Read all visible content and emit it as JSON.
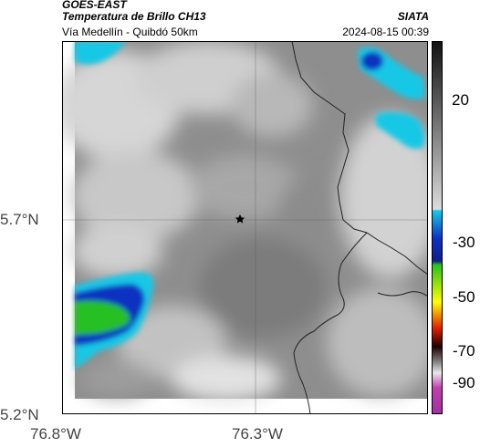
{
  "header": {
    "agency": "GOES-EAST",
    "product": "Temperatura de Brillo CH13",
    "organization": "SIATA",
    "route": "Vía Medellín - Quibdó 50km",
    "datetime": "2024-08-15 00:39"
  },
  "map": {
    "lat_ticks": [
      "5.7°N",
      "5.2°N"
    ],
    "lon_ticks": [
      "76.8°W",
      "76.3°W"
    ],
    "marker": "star-marker",
    "gridlines": true
  },
  "colorbar": {
    "labels": [
      "20",
      "-30",
      "-50",
      "-70",
      "-90"
    ],
    "colors": {
      "cold_black": "#111111",
      "gray_warm": "#8a8a8a",
      "cyan": "#18c8e6",
      "blue": "#1030c0",
      "green": "#28c020",
      "yellow": "#ffff00",
      "red": "#e02000",
      "magenta": "#c040b0"
    }
  }
}
